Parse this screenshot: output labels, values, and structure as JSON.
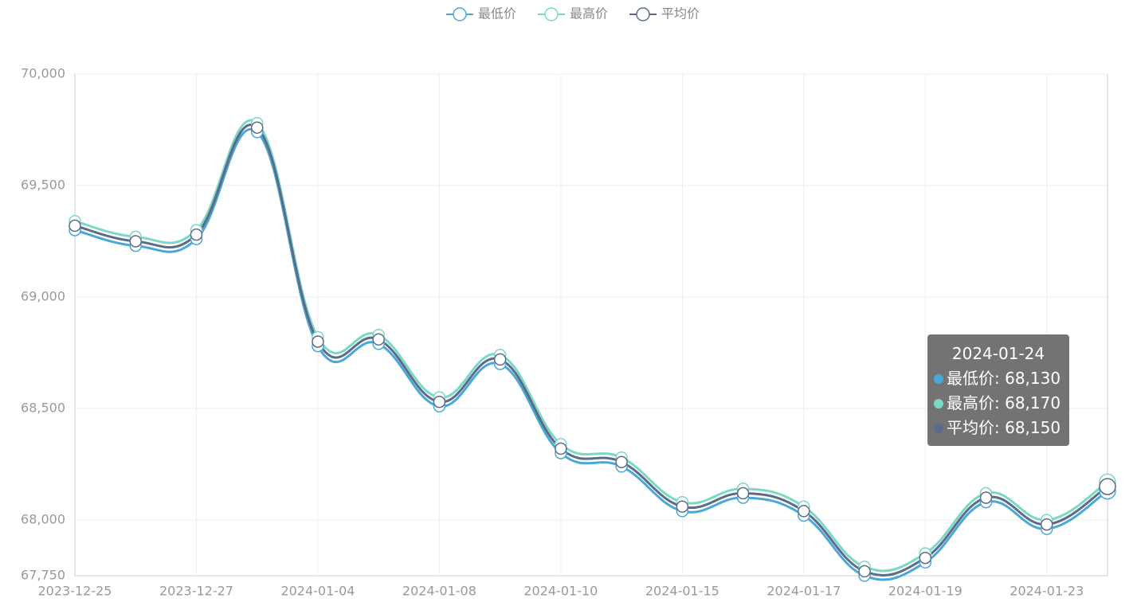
{
  "chart_data": {
    "type": "line",
    "smooth": true,
    "categories": [
      "2023-12-25",
      null,
      "2023-12-27",
      null,
      "2024-01-04",
      null,
      "2024-01-08",
      null,
      "2024-01-10",
      null,
      "2024-01-15",
      null,
      "2024-01-17",
      null,
      "2024-01-19",
      null,
      "2024-01-23",
      null
    ],
    "series": [
      {
        "name": "最低价",
        "color": "#4aa8d8",
        "values": [
          69300,
          69230,
          69260,
          69740,
          68780,
          68790,
          68510,
          68700,
          68300,
          68240,
          68040,
          68100,
          68020,
          67750,
          67810,
          68080,
          67960,
          68130
        ]
      },
      {
        "name": "最高价",
        "color": "#7ad9c4",
        "values": [
          69340,
          69270,
          69300,
          69780,
          68820,
          68830,
          68550,
          68740,
          68340,
          68280,
          68080,
          68140,
          68060,
          67790,
          67850,
          68120,
          68000,
          68170
        ]
      },
      {
        "name": "平均价",
        "color": "#5d6b8a",
        "values": [
          69320,
          69250,
          69280,
          69760,
          68800,
          68810,
          68530,
          68720,
          68320,
          68260,
          68060,
          68120,
          68040,
          67770,
          67830,
          68100,
          67980,
          68150
        ]
      }
    ],
    "ylim": [
      67750,
      70000
    ],
    "yticks": [
      {
        "value": 67750,
        "label": "67,750"
      },
      {
        "value": 68000,
        "label": "68,000"
      },
      {
        "value": 68500,
        "label": "68,500"
      },
      {
        "value": 69000,
        "label": "69,000"
      },
      {
        "value": 69500,
        "label": "69,500"
      },
      {
        "value": 70000,
        "label": "70,000"
      }
    ],
    "grid": true,
    "legend": "top",
    "tooltip": {
      "category": "2024-01-24",
      "index": 17,
      "value_labels": [
        "68,130",
        "68,170",
        "68,150"
      ]
    }
  }
}
